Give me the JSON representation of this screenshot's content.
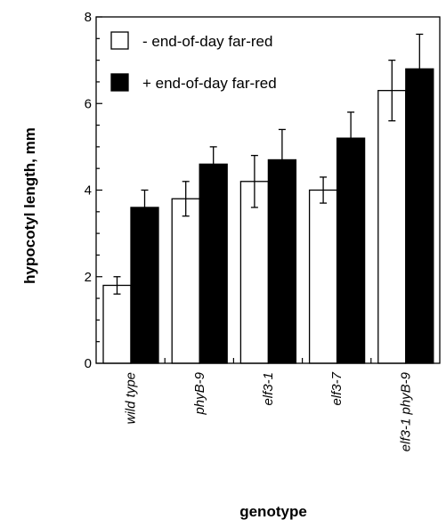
{
  "chart_data": {
    "type": "bar",
    "title": "",
    "xlabel": "genotype",
    "ylabel": "hypocotyl length, mm",
    "ylim": [
      0,
      8
    ],
    "yticks": [
      0,
      2,
      4,
      6,
      8
    ],
    "categories": [
      "wild type",
      "phyB-9",
      "elf3-1",
      "elf3-7",
      "elf3-1 phyB-9"
    ],
    "series": [
      {
        "name": "- end-of-day far-red",
        "color": "#ffffff",
        "values": [
          1.8,
          3.8,
          4.2,
          4.0,
          6.3
        ],
        "errors": [
          0.2,
          0.4,
          0.6,
          0.3,
          0.7
        ]
      },
      {
        "name": "+ end-of-day far-red",
        "color": "#000000",
        "values": [
          3.6,
          4.6,
          4.7,
          5.2,
          6.8
        ],
        "errors": [
          0.4,
          0.4,
          0.7,
          0.6,
          0.8
        ]
      }
    ],
    "legend_position": "top-left",
    "grid": false
  }
}
